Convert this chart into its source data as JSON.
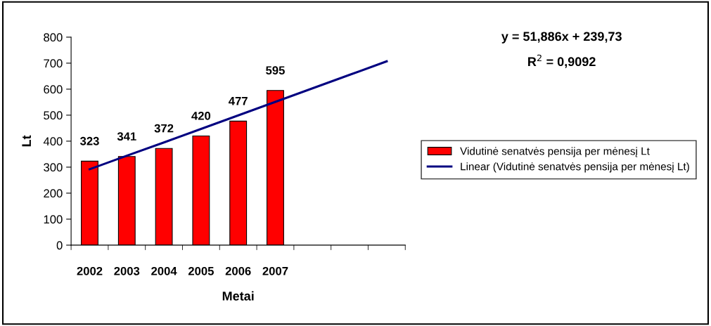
{
  "chart_data": {
    "type": "bar",
    "xlabel": "Metai",
    "ylabel": "Lt",
    "categories": [
      "2002",
      "2003",
      "2004",
      "2005",
      "2006",
      "2007",
      null,
      null,
      null
    ],
    "series": [
      {
        "name": "Vidutinė senatvės pensija per mėnesį Lt",
        "color": "#ff0000",
        "values": [
          323,
          341,
          372,
          420,
          477,
          595,
          null,
          null,
          null
        ],
        "value_labels": [
          "323",
          "341",
          "372",
          "420",
          "477",
          "595",
          null,
          null,
          null
        ]
      },
      {
        "name": "Linear (Vidutinė senatvės pensija per mėnesį Lt)",
        "type": "line",
        "color": "#000080",
        "values": [
          292,
          344,
          395,
          447,
          499,
          551,
          603,
          655,
          707
        ]
      }
    ],
    "ylim": [
      0,
      800
    ],
    "yticks": [
      0,
      100,
      200,
      300,
      400,
      500,
      600,
      700,
      800
    ],
    "legend": "right",
    "marker": "none",
    "line_style": "solid",
    "annotations": [
      "y = 51,886x + 239,73",
      "R$^{2}$ = 0,9092"
    ]
  }
}
